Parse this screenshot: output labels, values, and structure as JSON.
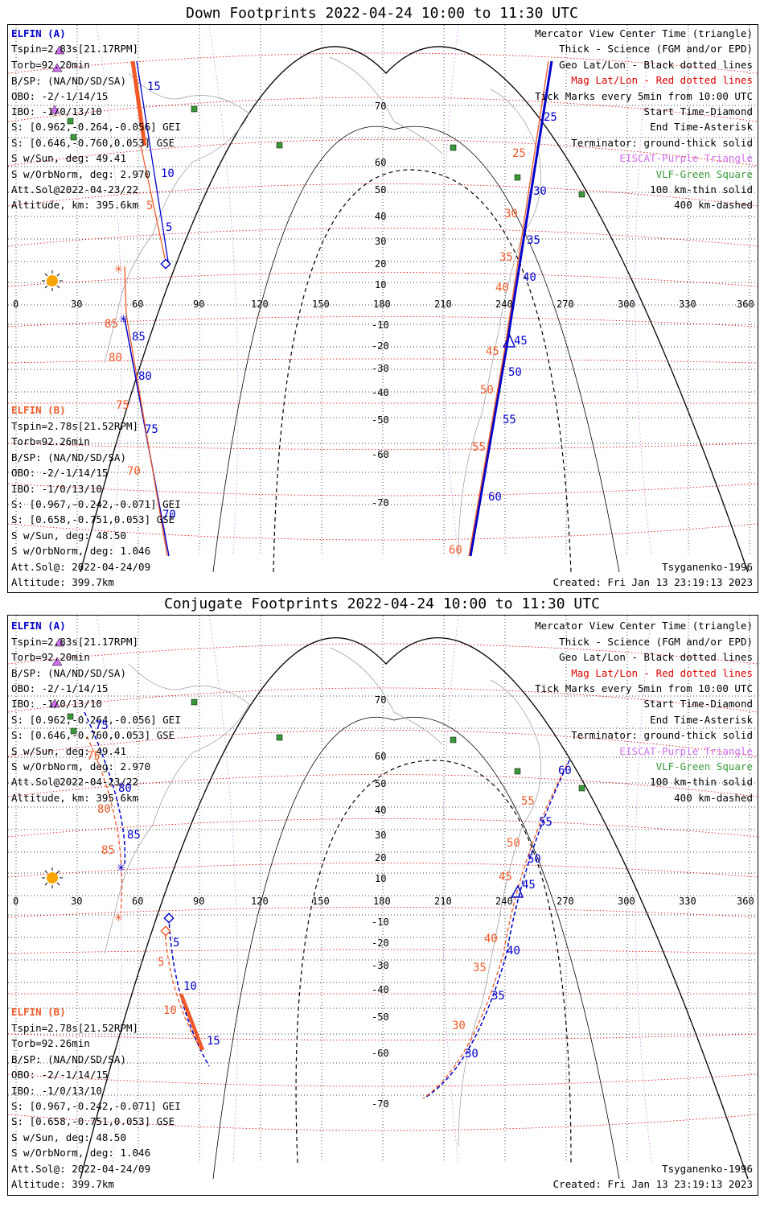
{
  "top_title": "Down Footprints 2022-04-24 10:00 to 11:30 UTC",
  "bottom_title": "Conjugate Footprints 2022-04-24 10:00 to 11:30 UTC",
  "elfin_a": {
    "header": "ELFIN (A)",
    "lines": [
      "Tspin=2.83s[21.17RPM]",
      "Torb=92.20min",
      "B/SP: (NA/ND/SD/SA)",
      "OBO: -2/-1/14/15",
      "IBO: -1/0/13/10",
      "S: [0.962,-0.264,-0.056] GEI",
      "S: [0.646,-0.760,0.053] GSE",
      "S w/Sun, deg: 49.41",
      "S w/OrbNorm, deg: 2.970",
      "Att.Sol@2022-04-23/22",
      "Altitude, km: 395.6km"
    ]
  },
  "elfin_b": {
    "header": "ELFIN (B)",
    "lines": [
      "Tspin=2.78s[21.52RPM]",
      "Torb=92.26min",
      "B/SP: (NA/ND/SD/SA)",
      "OBO: -2/-1/14/15",
      "IBO: -1/0/13/10",
      "S: [0.967,-0.242,-0.071] GEI",
      "S: [0.658,-0.751,0.053] GSE",
      "S w/Sun, deg: 48.50",
      "S w/OrbNorm, deg: 1.046",
      "Att.Sol@: 2022-04-24/09",
      "Altitude: 399.7km"
    ]
  },
  "legend": {
    "l1": "Mercator View Center Time (triangle)",
    "l2": "Thick - Science (FGM and/or EPD)",
    "l3": "Geo Lat/Lon - Black dotted lines",
    "l4": "Mag Lat/Lon - Red dotted lines",
    "l5": "Tick Marks every 5min from 10:00 UTC",
    "l6": "Start Time-Diamond",
    "l7": "End Time-Asterisk",
    "l8": "Terminator: ground-thick solid",
    "l9": "EISCAT-Purple Triangle",
    "l10": "VLF-Green Square",
    "l11": "100 km-thin solid",
    "l12": "400 km-dashed"
  },
  "footer": {
    "model": "Tsyganenko-1996",
    "created": "Created: Fri Jan 13 23:19:13 2023"
  },
  "axes": {
    "lon_ticks": [
      "0",
      "30",
      "60",
      "90",
      "120",
      "150",
      "180",
      "210",
      "240",
      "270",
      "300",
      "330",
      "360"
    ],
    "lat_labels": [
      "70",
      "60",
      "50",
      "40",
      "30",
      "20",
      "10",
      "-10",
      "-20",
      "-30",
      "-40",
      "-50",
      "-60",
      "-70"
    ]
  },
  "colors": {
    "elfin_a": "#0000cc",
    "elfin_b": "#f05a28",
    "geo_grid": "#000000",
    "mag_grid": "#e00000",
    "eiscat": "#d070f0",
    "vlf": "#3a9a3a"
  },
  "down_ticks": {
    "a": [
      "15",
      "10",
      "5",
      "25",
      "30",
      "35",
      "40",
      "45",
      "50",
      "55",
      "60",
      "85",
      "80",
      "75",
      "70"
    ],
    "b": [
      "5",
      "25",
      "30",
      "35",
      "40",
      "45",
      "50",
      "55",
      "60",
      "85",
      "80",
      "75",
      "70"
    ]
  },
  "conj_ticks": {
    "a": [
      "75",
      "80",
      "85",
      "5",
      "10",
      "15",
      "60",
      "55",
      "50",
      "45",
      "40",
      "35",
      "30"
    ],
    "b": [
      "75",
      "80",
      "85",
      "5",
      "10",
      "55",
      "50",
      "45",
      "40",
      "35",
      "30"
    ]
  }
}
